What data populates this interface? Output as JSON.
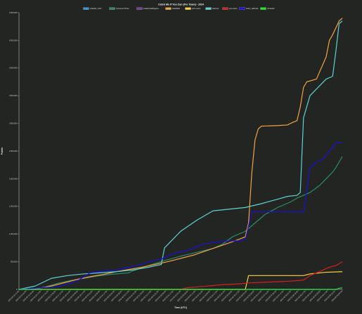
{
  "chart_data": {
    "type": "line",
    "title": "Catch Me If You Can (Per Team) - 2024",
    "xlabel": "Time (UTC)",
    "ylabel": "Points",
    "ylim": [
      0,
      5000000
    ],
    "yticks": [
      0,
      500000,
      1000000,
      1500000,
      2000000,
      2500000,
      3000000,
      3500000,
      4000000,
      4500000,
      5000000
    ],
    "ytick_labels": [
      "0",
      "500,000",
      "1,000,000",
      "1,500,000",
      "2,000,000",
      "2,500,000",
      "3,000,000",
      "3,500,000",
      "4,000,000",
      "4,500,000",
      "5,000,000"
    ],
    "xlim": [
      0,
      100
    ],
    "xtick_labels": [
      "2024-06-15 17:00",
      "2024-06-16 01:00",
      "2024-06-16 09:00",
      "2024-06-16 17:00",
      "2024-06-17 01:00",
      "2024-06-17 09:00",
      "2024-06-17 17:00",
      "2024-06-18 01:00",
      "2024-06-18 09:00",
      "2024-06-18 17:00",
      "2024-06-19 01:00",
      "2024-06-19 09:00",
      "2024-06-19 17:00",
      "2024-06-20 01:00",
      "2024-06-20 09:00",
      "2024-06-20 17:00",
      "2024-06-21 01:00",
      "2024-06-21 09:00",
      "2024-06-21 17:00",
      "2024-06-22 01:00",
      "2024-06-22 09:00",
      "2024-06-22 17:00",
      "2024-06-23 01:00",
      "2024-06-23 09:00",
      "2024-06-23 17:00",
      "2024-06-24 01:00",
      "2024-06-24 09:00",
      "2024-06-24 17:00",
      "2024-06-25 01:00",
      "2024-06-25 09:00",
      "2024-06-25 17:00",
      "2024-06-26 01:00",
      "2024-06-26 09:00",
      "2024-06-26 17:00",
      "2024-06-27 01:00",
      "2024-06-27 09:00",
      "2024-06-27 17:00",
      "2024-06-28 01:00",
      "2024-06-28 09:00",
      "2024-06-28 17:00",
      "2024-06-29 01:00",
      "2024-06-29 09:00",
      "2024-06-29 17:00",
      "2024-06-30 01:00",
      "2024-06-30 09:00"
    ],
    "grid": false,
    "legend_position": "top-center",
    "series": [
      {
        "name": "Carbolic_UCF",
        "color": "#3a96dd",
        "x": [
          0,
          100
        ],
        "y": [
          0,
          0
        ]
      },
      {
        "name": "Cynosure Prime",
        "color": "#2e8b6e",
        "x": [
          0,
          5,
          8,
          12,
          16,
          20,
          24,
          28,
          32,
          34,
          35,
          40,
          45,
          50,
          55,
          60,
          63,
          66,
          70,
          72,
          76,
          80,
          84,
          86,
          90,
          93,
          95,
          97,
          98,
          100
        ],
        "y": [
          0,
          5000,
          40000,
          110000,
          160000,
          200000,
          240000,
          270000,
          290000,
          300000,
          330000,
          430000,
          520000,
          600000,
          670000,
          740000,
          820000,
          950000,
          1050000,
          1150000,
          1350000,
          1480000,
          1580000,
          1650000,
          1750000,
          1880000,
          2000000,
          2120000,
          2200000,
          2400000
        ]
      },
      {
        "name": "FeatheredDragons",
        "color": "#7b3f9e",
        "x": [
          0,
          100
        ],
        "y": [
          0,
          0
        ]
      },
      {
        "name": "HashMob",
        "color": "#f5a342",
        "x": [
          0,
          6,
          10,
          14,
          18,
          22,
          26,
          30,
          34,
          38,
          42,
          46,
          50,
          54,
          58,
          62,
          66,
          70,
          71,
          72,
          73,
          74,
          75,
          80,
          83,
          84,
          86,
          87,
          88,
          89,
          92,
          95,
          96,
          97,
          99,
          100
        ],
        "y": [
          0,
          20000,
          60000,
          120000,
          180000,
          230000,
          270000,
          320000,
          360000,
          400000,
          450000,
          500000,
          560000,
          620000,
          700000,
          780000,
          860000,
          950000,
          1200000,
          2100000,
          2700000,
          2900000,
          2950000,
          2960000,
          2970000,
          3000000,
          3050000,
          3300000,
          3650000,
          3750000,
          3800000,
          4200000,
          4500000,
          4600000,
          4850000,
          4900000
        ]
      },
      {
        "name": "john-users",
        "color": "#ffd23f",
        "x": [
          0,
          62,
          70,
          71,
          80,
          85,
          88,
          90,
          95,
          100
        ],
        "y": [
          0,
          0,
          0,
          250000,
          250000,
          250000,
          250000,
          280000,
          310000,
          320000
        ]
      },
      {
        "name": "Kasinus",
        "color": "#5ed4d0",
        "x": [
          0,
          5,
          10,
          15,
          20,
          25,
          30,
          35,
          40,
          44,
          45,
          50,
          55,
          60,
          65,
          70,
          75,
          80,
          83,
          86,
          87,
          88,
          90,
          95,
          97,
          98,
          99,
          100
        ],
        "y": [
          0,
          60000,
          200000,
          250000,
          280000,
          300000,
          320000,
          350000,
          400000,
          450000,
          750000,
          1050000,
          1250000,
          1420000,
          1450000,
          1480000,
          1550000,
          1630000,
          1680000,
          1700000,
          1750000,
          3100000,
          3500000,
          3800000,
          3850000,
          4300000,
          4800000,
          4850000
        ]
      },
      {
        "name": "pen-users",
        "color": "#d62020",
        "x": [
          0,
          50,
          52,
          56,
          60,
          64,
          68,
          70,
          72,
          76,
          80,
          84,
          88,
          90,
          94,
          96,
          98,
          100
        ],
        "y": [
          0,
          0,
          30000,
          50000,
          70000,
          90000,
          100000,
          110000,
          120000,
          130000,
          140000,
          150000,
          170000,
          250000,
          350000,
          400000,
          430000,
          500000
        ]
      },
      {
        "name": "Team_Hashcat",
        "color": "#1a10e0",
        "x": [
          0,
          12,
          18,
          22,
          26,
          30,
          34,
          38,
          40,
          44,
          48,
          52,
          56,
          60,
          64,
          68,
          70,
          72,
          76,
          80,
          84,
          88,
          90,
          92,
          94,
          96,
          98,
          100
        ],
        "y": [
          0,
          50000,
          150000,
          300000,
          330000,
          350000,
          400000,
          450000,
          500000,
          550000,
          650000,
          700000,
          800000,
          850000,
          870000,
          880000,
          900000,
          1400000,
          1400000,
          1400000,
          1400000,
          1400000,
          2200000,
          2300000,
          2350000,
          2500000,
          2650000,
          2650000
        ]
      },
      {
        "name": "trontastic",
        "color": "#1ee81e",
        "x": [
          0,
          98,
          99,
          100
        ],
        "y": [
          0,
          0,
          20000,
          30000
        ]
      }
    ]
  }
}
